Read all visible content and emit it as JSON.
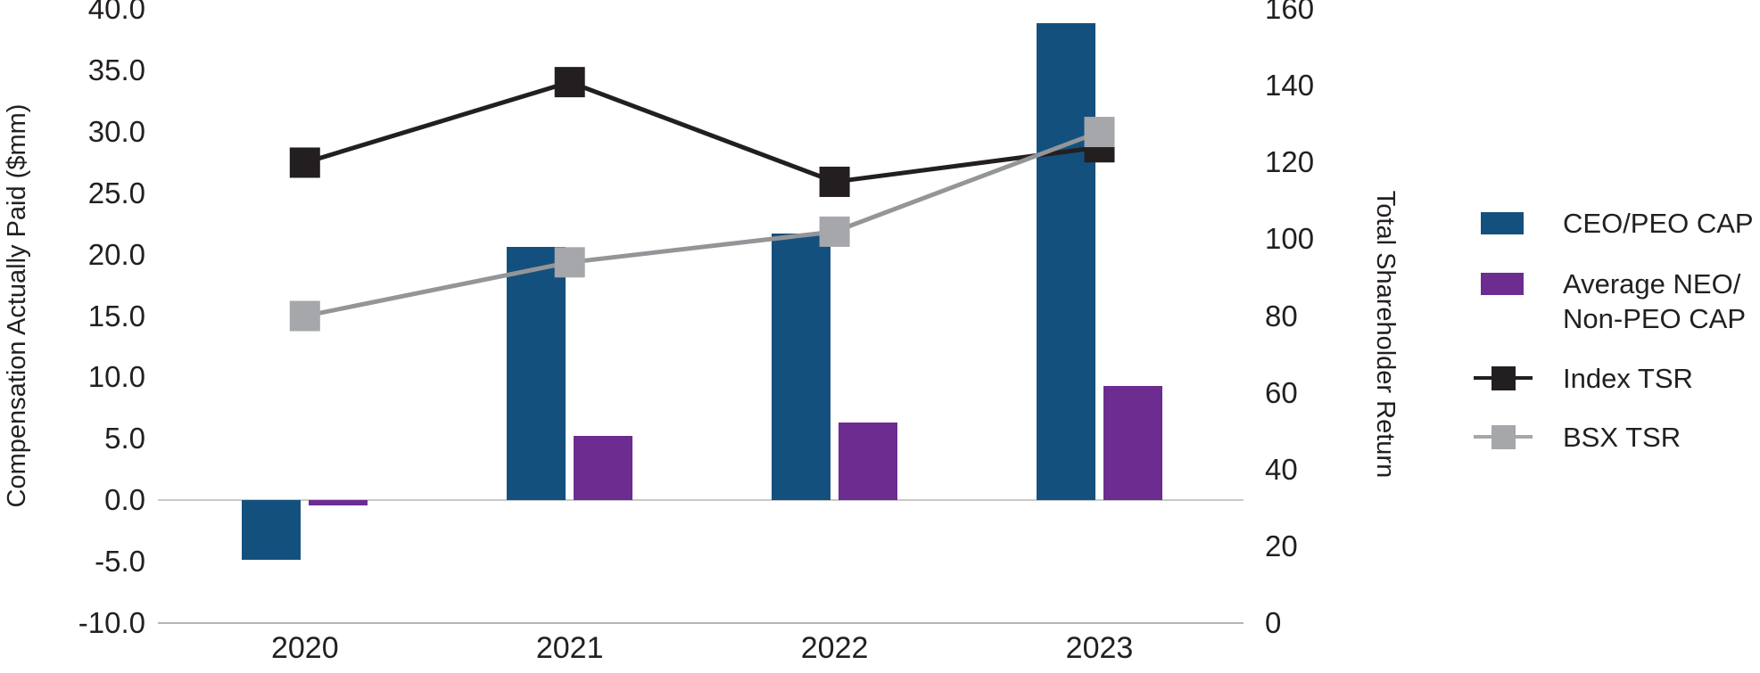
{
  "chart_data": {
    "type": "bar",
    "subtype": "combo-bar-line",
    "categories": [
      "2020",
      "2021",
      "2022",
      "2023"
    ],
    "series": [
      {
        "name": "CEO/PEO CAP",
        "kind": "bar",
        "axis": "left",
        "color": "#14507e",
        "values": [
          -4.9,
          20.6,
          21.7,
          38.9
        ]
      },
      {
        "name": "Average NEO/Non-PEO CAP",
        "kind": "bar",
        "axis": "left",
        "color": "#6c2c90",
        "values": [
          -0.4,
          5.2,
          6.3,
          9.3
        ]
      },
      {
        "name": "Index TSR",
        "kind": "line",
        "axis": "right",
        "line_color": "#231f20",
        "marker_color": "#231f20",
        "values": [
          120,
          141,
          115,
          124
        ]
      },
      {
        "name": "BSX TSR",
        "kind": "line",
        "axis": "right",
        "line_color": "#939598",
        "marker_color": "#a5a7aa",
        "values": [
          80,
          94,
          102,
          128
        ]
      }
    ],
    "left_axis": {
      "title": "Compensation Actually Paid ($mm)",
      "min": -10,
      "max": 40,
      "step": 5,
      "tick_labels": [
        "40.0",
        "35.0",
        "30.0",
        "25.0",
        "20.0",
        "15.0",
        "10.0",
        "5.0",
        "0.0",
        "-5.0",
        "-10.0"
      ]
    },
    "right_axis": {
      "title": "Total Shareholder Return",
      "min": 0,
      "max": 160,
      "step": 20,
      "tick_labels": [
        "160",
        "140",
        "120",
        "100",
        "80",
        "60",
        "40",
        "20",
        "0"
      ]
    },
    "gridlines_at_left_values": [
      0,
      -10
    ],
    "grid_colors": {
      "zero_line": "#c8c9cb",
      "bottom_line": "#b2b4b6"
    },
    "legend_position": "right"
  },
  "legend": {
    "items": [
      {
        "label": "CEO/PEO CAP",
        "label_lines": [
          "CEO/PEO CAP"
        ],
        "swatch": "bar",
        "color": "#14507e"
      },
      {
        "label": "Average NEO/Non-PEO CAP",
        "label_lines": [
          "Average NEO/",
          "Non-PEO CAP"
        ],
        "swatch": "bar",
        "color": "#6c2c90"
      },
      {
        "label": "Index TSR",
        "label_lines": [
          "Index TSR"
        ],
        "swatch": "line-marker",
        "color": "#231f20"
      },
      {
        "label": "BSX TSR",
        "label_lines": [
          "BSX TSR"
        ],
        "swatch": "line-marker",
        "color": "#a5a7aa"
      }
    ]
  }
}
